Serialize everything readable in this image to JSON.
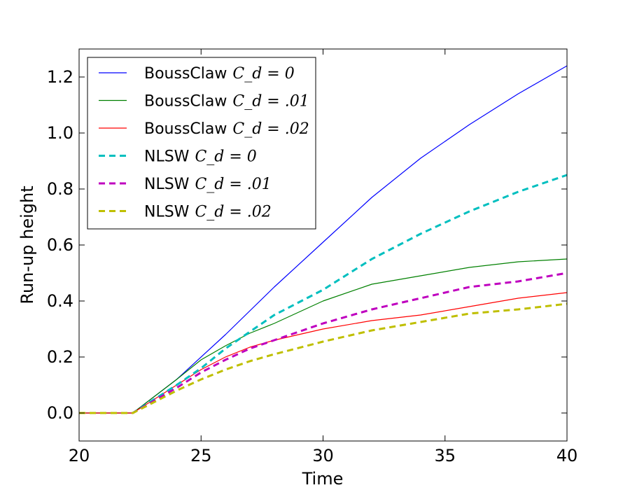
{
  "chart_data": {
    "type": "line",
    "xlabel": "Time",
    "ylabel": "Run-up height",
    "xlim": [
      20,
      40
    ],
    "ylim": [
      -0.1,
      1.3
    ],
    "xticks": [
      "20",
      "25",
      "30",
      "35",
      "40"
    ],
    "yticks": [
      "0.0",
      "0.2",
      "0.4",
      "0.6",
      "0.8",
      "1.0",
      "1.2"
    ],
    "legend_placement": "upper-left",
    "grid": false,
    "series": [
      {
        "name_text": "BoussClaw",
        "name_math": "C_d = 0",
        "color": "#0000ff",
        "style": "solid",
        "x": [
          20,
          22.2,
          24,
          26,
          28,
          30,
          32,
          34,
          36,
          38,
          40
        ],
        "y": [
          0,
          0,
          0.12,
          0.28,
          0.45,
          0.61,
          0.77,
          0.91,
          1.03,
          1.14,
          1.24
        ]
      },
      {
        "name_text": "BoussClaw",
        "name_math": "C_d = .01",
        "color": "#008000",
        "style": "solid",
        "x": [
          20,
          22.2,
          24,
          25,
          26,
          27,
          28,
          30,
          32,
          34,
          36,
          38,
          40
        ],
        "y": [
          0,
          0,
          0.12,
          0.19,
          0.24,
          0.285,
          0.32,
          0.4,
          0.46,
          0.49,
          0.52,
          0.54,
          0.55
        ]
      },
      {
        "name_text": "BoussClaw",
        "name_math": "C_d = .02",
        "color": "#ff0000",
        "style": "solid",
        "x": [
          20,
          22.2,
          24,
          25,
          26,
          27,
          28,
          30,
          32,
          34,
          36,
          38,
          40
        ],
        "y": [
          0,
          0,
          0.1,
          0.155,
          0.2,
          0.235,
          0.26,
          0.3,
          0.33,
          0.35,
          0.38,
          0.41,
          0.43
        ]
      },
      {
        "name_text": "NLSW",
        "name_math": "C_d = 0",
        "color": "#00bfbf",
        "style": "dashed",
        "x": [
          20,
          22.2,
          24,
          25,
          26,
          27,
          28,
          30,
          32,
          34,
          36,
          38,
          40
        ],
        "y": [
          0,
          0,
          0.1,
          0.16,
          0.23,
          0.29,
          0.35,
          0.44,
          0.55,
          0.64,
          0.72,
          0.79,
          0.85
        ]
      },
      {
        "name_text": "NLSW",
        "name_math": "C_d = .01",
        "color": "#bf00bf",
        "style": "dashed",
        "x": [
          20,
          22.2,
          24,
          25,
          26,
          27,
          28,
          30,
          32,
          34,
          36,
          38,
          40
        ],
        "y": [
          0,
          0,
          0.09,
          0.145,
          0.19,
          0.23,
          0.26,
          0.32,
          0.37,
          0.41,
          0.45,
          0.47,
          0.5
        ]
      },
      {
        "name_text": "NLSW",
        "name_math": "C_d = .02",
        "color": "#bfbf00",
        "style": "dashed",
        "x": [
          20,
          22.2,
          24,
          25,
          26,
          27,
          28,
          30,
          32,
          34,
          36,
          38,
          40
        ],
        "y": [
          0,
          0,
          0.08,
          0.12,
          0.155,
          0.185,
          0.21,
          0.255,
          0.295,
          0.325,
          0.355,
          0.37,
          0.39
        ]
      }
    ]
  }
}
